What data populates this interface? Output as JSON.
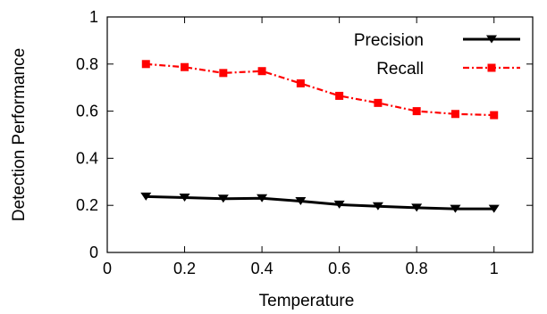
{
  "chart_data": {
    "type": "line",
    "title": "",
    "xlabel": "Temperature",
    "ylabel": "Detection Performance",
    "xlim": [
      0,
      1.1
    ],
    "ylim": [
      0,
      1
    ],
    "xticks": [
      0,
      0.2,
      0.4,
      0.6,
      0.8,
      1
    ],
    "xtick_labels": [
      "0",
      "0.2",
      "0.4",
      "0.6",
      "0.8",
      "1"
    ],
    "yticks": [
      0,
      0.2,
      0.4,
      0.6,
      0.8,
      1
    ],
    "ytick_labels": [
      "0",
      "0.2",
      "0.4",
      "0.6",
      "0.8",
      "1"
    ],
    "grid": false,
    "legend_position": "top-right",
    "x": [
      0.1,
      0.2,
      0.3,
      0.4,
      0.5,
      0.6,
      0.7,
      0.8,
      0.9,
      1.0
    ],
    "series": [
      {
        "name": "Precision",
        "values": [
          0.237,
          0.233,
          0.228,
          0.23,
          0.218,
          0.203,
          0.196,
          0.19,
          0.185,
          0.185
        ],
        "color": "#000000",
        "marker": "triangle-down",
        "line_style": "solid"
      },
      {
        "name": "Recall",
        "values": [
          0.8,
          0.787,
          0.762,
          0.77,
          0.718,
          0.665,
          0.635,
          0.6,
          0.588,
          0.583
        ],
        "color": "#ff0000",
        "marker": "square",
        "line_style": "dash-dot"
      }
    ]
  }
}
